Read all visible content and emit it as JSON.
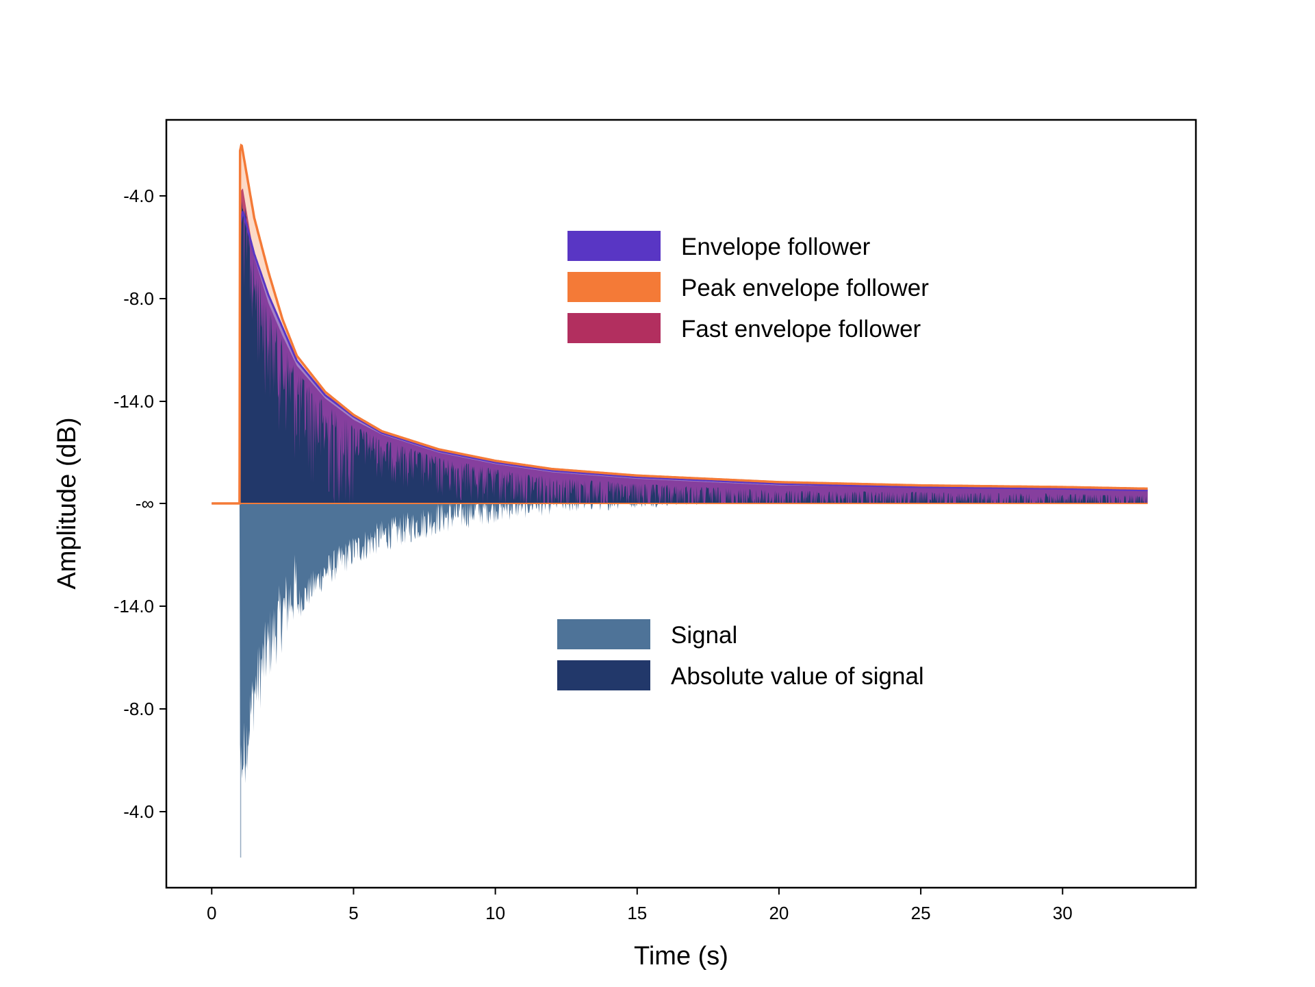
{
  "chart_data": {
    "type": "area",
    "xlabel": "Time (s)",
    "ylabel": "Amplitude (dB)",
    "xlim": [
      -1.6,
      34.7
    ],
    "x_ticks": [
      0,
      5,
      10,
      15,
      20,
      25,
      30
    ],
    "x_tick_labels": [
      "0",
      "5",
      "10",
      "15",
      "20",
      "25",
      "30"
    ],
    "y_ticks": [
      -4.0,
      -8.0,
      -14.0,
      "-∞",
      -14.0,
      -8.0,
      -4.0
    ],
    "y_tick_labels": [
      "-4.0",
      "-8.0",
      "-14.0",
      "-∞",
      "-14.0",
      "-8.0",
      "-4.0"
    ],
    "grid": false,
    "attack_time": 1.0,
    "end_time": 33.0,
    "series": [
      {
        "name": "Envelope follower",
        "color": "#5936c4",
        "x": [
          0,
          0.95,
          1.0,
          1.1,
          1.5,
          2.0,
          2.5,
          3.0,
          4.0,
          5.0,
          6.0,
          8.0,
          10.0,
          12.0,
          15.0,
          20.0,
          25.0,
          30.0,
          33.0
        ],
        "y": [
          -60,
          -60,
          -7.0,
          -6.2,
          -8.8,
          -11.3,
          -13.3,
          -15.3,
          -17.4,
          -18.7,
          -19.7,
          -20.8,
          -21.5,
          -22.0,
          -22.4,
          -22.8,
          -23.0,
          -23.1,
          -23.2
        ]
      },
      {
        "name": "Peak envelope follower",
        "color": "#f47a37",
        "x": [
          0,
          0.95,
          1.0,
          1.05,
          1.5,
          2.0,
          2.5,
          3.0,
          4.0,
          5.0,
          6.0,
          8.0,
          10.0,
          12.0,
          15.0,
          20.0,
          25.0,
          30.0,
          33.0
        ],
        "y": [
          -60,
          -60,
          -2.5,
          -2.1,
          -6.6,
          -9.9,
          -12.8,
          -15.0,
          -17.2,
          -18.6,
          -19.6,
          -20.7,
          -21.4,
          -21.9,
          -22.3,
          -22.7,
          -22.9,
          -23.0,
          -23.1
        ]
      },
      {
        "name": "Fast envelope follower",
        "color": "#b22f5f",
        "x": [
          0,
          0.95,
          1.0,
          1.1,
          1.5,
          2.0,
          2.5,
          3.0,
          4.0,
          5.0,
          6.0,
          8.0,
          10.0,
          12.0,
          15.0,
          20.0,
          25.0,
          30.0,
          33.0
        ],
        "y": [
          -60,
          -60,
          -5.0,
          -4.8,
          -9.0,
          -11.8,
          -13.8,
          -15.6,
          -17.6,
          -18.9,
          -19.8,
          -20.9,
          -21.6,
          -22.1,
          -22.5,
          -22.9,
          -23.0,
          -23.1,
          -23.2
        ]
      },
      {
        "name": "Signal",
        "color": "#4e7398",
        "orientation": "downward"
      },
      {
        "name": "Absolute value of signal",
        "color": "#22386a",
        "orientation": "upward"
      }
    ]
  },
  "legend_top": {
    "items": [
      {
        "label": "Envelope follower",
        "color": "#5936c4"
      },
      {
        "label": "Peak envelope follower",
        "color": "#f47a37"
      },
      {
        "label": "Fast envelope follower",
        "color": "#b22f5f"
      }
    ]
  },
  "legend_bottom": {
    "items": [
      {
        "label": "Signal",
        "color": "#4e7398"
      },
      {
        "label": "Absolute value of signal",
        "color": "#22386a"
      }
    ]
  }
}
